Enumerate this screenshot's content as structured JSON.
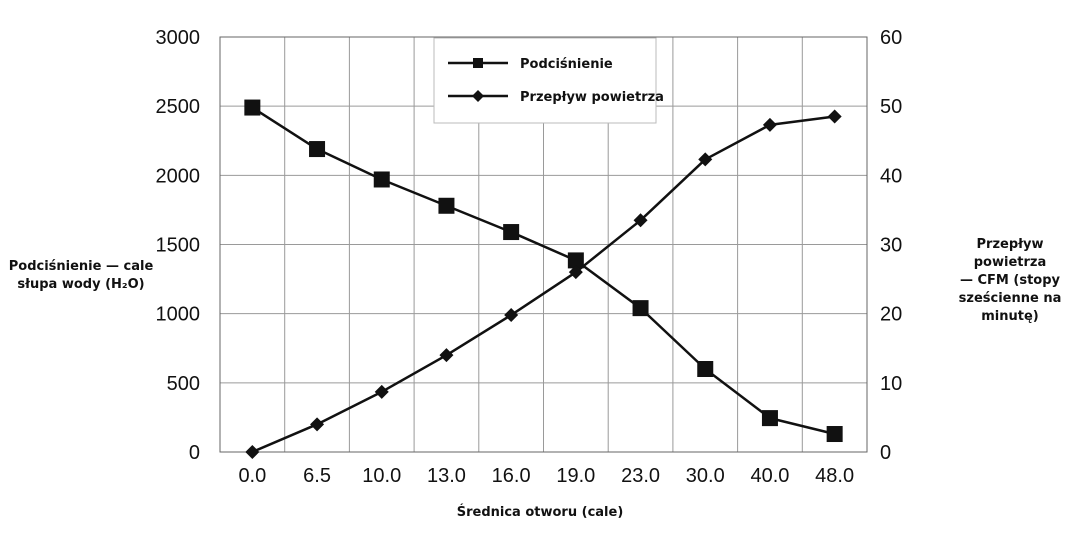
{
  "chart_data": {
    "type": "line",
    "x_label": "Średnica otworu (cale)",
    "categories": [
      "0.0",
      "6.5",
      "10.0",
      "13.0",
      "16.0",
      "19.0",
      "23.0",
      "30.0",
      "40.0",
      "48.0"
    ],
    "y_left": {
      "label_line1": "Podciśnienie — cale",
      "label_line2": "słupa wody (H₂O)",
      "range": [
        0,
        3000
      ],
      "ticks": [
        "0",
        "500",
        "1000",
        "1500",
        "2000",
        "2500",
        "3000"
      ]
    },
    "y_right": {
      "label_line1": "Przepływ powietrza",
      "label_line2": "— CFM (stopy",
      "label_line3": "sześcienne na",
      "label_line4": "minutę)",
      "range": [
        0,
        60
      ],
      "ticks": [
        "0",
        "10",
        "20",
        "30",
        "40",
        "50",
        "60"
      ]
    },
    "grid": true,
    "legend_position": "top-center",
    "series": [
      {
        "name": "Podciśnienie",
        "axis": "left",
        "marker": "square",
        "values": [
          2490,
          2190,
          1970,
          1780,
          1590,
          1385,
          1040,
          600,
          245,
          130
        ]
      },
      {
        "name": "Przepływ powietrza",
        "axis": "right",
        "marker": "diamond",
        "values": [
          0,
          4,
          8.7,
          14,
          19.8,
          26,
          33.5,
          42.3,
          47.3,
          48.5
        ]
      }
    ]
  }
}
